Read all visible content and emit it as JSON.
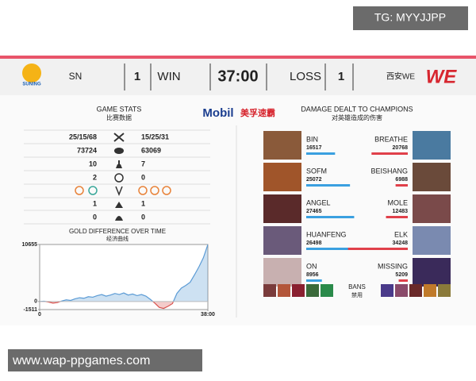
{
  "watermark_top": "TG: MYYJJPP",
  "header": {
    "left_logo": "SUNING",
    "left_team": "SN",
    "left_score": "1",
    "left_result": "WIN",
    "game_time": "37:00",
    "right_result": "LOSS",
    "right_score": "1",
    "right_team": "西安WE",
    "right_logo": "WE"
  },
  "sponsor": {
    "brand": "Mobil",
    "product": "美孚速霸"
  },
  "stats": {
    "title": "GAME STATS",
    "subtitle": "比赛数据",
    "kda": [
      "25/15/68",
      "15/25/31"
    ],
    "gold": [
      "73724",
      "63069"
    ],
    "towers": [
      "10",
      "7"
    ],
    "barons": [
      "2",
      "0"
    ],
    "inhibitors": [
      "1",
      "1"
    ],
    "heralds": [
      "0",
      "0"
    ]
  },
  "chart_data": {
    "type": "area",
    "title": "GOLD DIFFERENCE OVER TIME",
    "subtitle": "经济曲线",
    "x": [
      0,
      1,
      2,
      3,
      4,
      5,
      6,
      7,
      8,
      9,
      10,
      11,
      12,
      13,
      14,
      15,
      16,
      17,
      18,
      19,
      20,
      21,
      22,
      23,
      24,
      25,
      26,
      27,
      28,
      29,
      30,
      31,
      32,
      33,
      34,
      35,
      36,
      37,
      38
    ],
    "values": [
      0,
      50,
      -100,
      -300,
      -200,
      100,
      300,
      200,
      500,
      700,
      600,
      900,
      800,
      1100,
      1300,
      1000,
      1200,
      1500,
      1300,
      1600,
      1200,
      1400,
      1100,
      1300,
      1000,
      400,
      -300,
      -1100,
      -1300,
      -900,
      -400,
      1500,
      2500,
      3000,
      3600,
      5000,
      6500,
      8200,
      10655
    ],
    "xlim": [
      0,
      38
    ],
    "xticks": [
      0,
      {
        "value": 38,
        "label": "38:00"
      }
    ],
    "ylim": [
      -1511,
      10655
    ],
    "yticks": [
      10655,
      0,
      -1511
    ],
    "color": "#5b9bd5",
    "negative_color": "#d9534f"
  },
  "damage": {
    "title": "DAMAGE DEALT TO CHAMPIONS",
    "subtitle": "对英雄造成的伤害",
    "left": [
      {
        "name": "BIN",
        "value": 16517
      },
      {
        "name": "SOFM",
        "value": 25072
      },
      {
        "name": "ANGEL",
        "value": 27465
      },
      {
        "name": "HUANFENG",
        "value": 26498
      },
      {
        "name": "ON",
        "value": 8956
      }
    ],
    "right": [
      {
        "name": "BREATHE",
        "value": 20768
      },
      {
        "name": "BEISHANG",
        "value": 6988
      },
      {
        "name": "MOLE",
        "value": 12483
      },
      {
        "name": "ELK",
        "value": 34248
      },
      {
        "name": "MISSING",
        "value": 5209
      }
    ],
    "left_color": "#3aa0e0",
    "right_color": "#e0404a"
  },
  "bans": {
    "label": "BANS",
    "sublabel": "禁用"
  },
  "watermark_bottom": "www.wap-ppgames.com"
}
